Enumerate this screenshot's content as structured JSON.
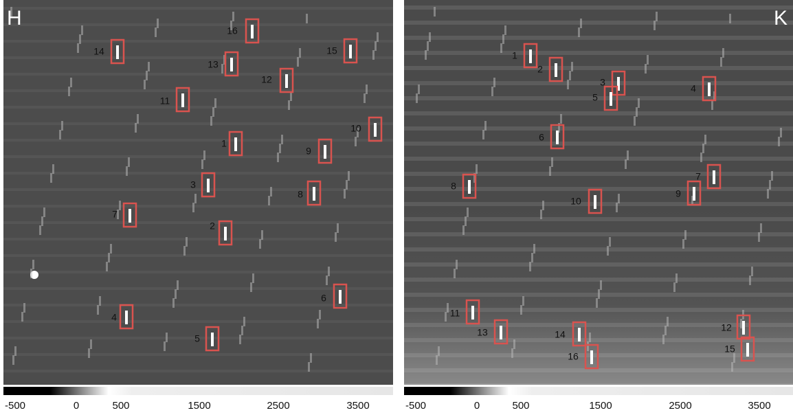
{
  "panels": [
    {
      "label": "H",
      "boxes": [
        "14",
        "16",
        "15",
        "13",
        "12",
        "11",
        "10",
        "1",
        "9",
        "3",
        "8",
        "7",
        "2",
        "6",
        "4",
        "5"
      ],
      "colorbar": {
        "ticks": [
          -500,
          0,
          500,
          1500,
          2500,
          3500
        ]
      }
    },
    {
      "label": "K",
      "boxes": [
        "1",
        "2",
        "3",
        "5",
        "4",
        "6",
        "7",
        "9",
        "8",
        "10",
        "11",
        "13",
        "14",
        "16",
        "12",
        "15"
      ],
      "colorbar": {
        "ticks": [
          -500,
          0,
          500,
          1500,
          2500,
          3500
        ]
      }
    }
  ]
}
